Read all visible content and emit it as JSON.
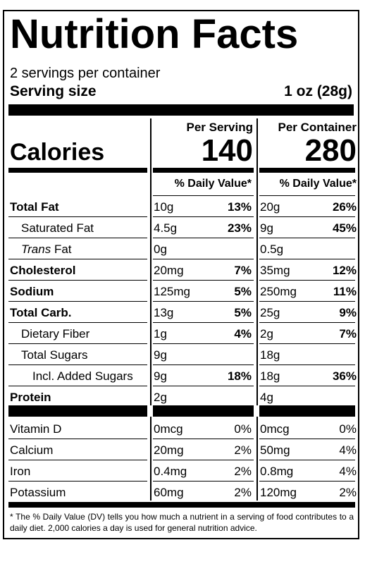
{
  "title": "Nutrition Facts",
  "servings_per_container": "2 servings per container",
  "serving_size": {
    "label": "Serving size",
    "value": "1 oz (28g)"
  },
  "calories": {
    "label": "Calories",
    "per_serving": "140",
    "per_container": "280"
  },
  "columns": {
    "per_serving": "Per Serving",
    "per_container": "Per Container",
    "dv_header": "% Daily Value*"
  },
  "nutrients": [
    {
      "name": "Total Fat",
      "serving_amount": "10g",
      "serving_dv": "13%",
      "container_amount": "20g",
      "container_dv": "26%"
    },
    {
      "name": "Saturated Fat",
      "serving_amount": "4.5g",
      "serving_dv": "23%",
      "container_amount": "9g",
      "container_dv": "45%"
    },
    {
      "name_prefix": "Trans",
      "name": "Fat",
      "serving_amount": "0g",
      "serving_dv": "",
      "container_amount": "0.5g",
      "container_dv": ""
    },
    {
      "name": "Cholesterol",
      "serving_amount": "20mg",
      "serving_dv": "7%",
      "container_amount": "35mg",
      "container_dv": "12%"
    },
    {
      "name": "Sodium",
      "serving_amount": "125mg",
      "serving_dv": "5%",
      "container_amount": "250mg",
      "container_dv": "11%"
    },
    {
      "name": "Total Carb.",
      "serving_amount": "13g",
      "serving_dv": "5%",
      "container_amount": "25g",
      "container_dv": "9%"
    },
    {
      "name": "Dietary Fiber",
      "serving_amount": "1g",
      "serving_dv": "4%",
      "container_amount": "2g",
      "container_dv": "7%"
    },
    {
      "name": "Total Sugars",
      "serving_amount": "9g",
      "serving_dv": "",
      "container_amount": "18g",
      "container_dv": ""
    },
    {
      "name": "Incl. Added Sugars",
      "serving_amount": "9g",
      "serving_dv": "18%",
      "container_amount": "18g",
      "container_dv": "36%"
    },
    {
      "name": "Protein",
      "serving_amount": "2g",
      "serving_dv": "",
      "container_amount": "4g",
      "container_dv": ""
    }
  ],
  "vitamins": [
    {
      "name": "Vitamin D",
      "serving_amount": "0mcg",
      "serving_dv": "0%",
      "container_amount": "0mcg",
      "container_dv": "0%"
    },
    {
      "name": "Calcium",
      "serving_amount": "20mg",
      "serving_dv": "2%",
      "container_amount": "50mg",
      "container_dv": "4%"
    },
    {
      "name": "Iron",
      "serving_amount": "0.4mg",
      "serving_dv": "2%",
      "container_amount": "0.8mg",
      "container_dv": "4%"
    },
    {
      "name": "Potassium",
      "serving_amount": "60mg",
      "serving_dv": "2%",
      "container_amount": "120mg",
      "container_dv": "2%"
    }
  ],
  "footnote": "* The % Daily Value (DV) tells you how much a nutrient in a serving of food contributes to a daily diet. 2,000 calories a day is used for general nutrition advice."
}
